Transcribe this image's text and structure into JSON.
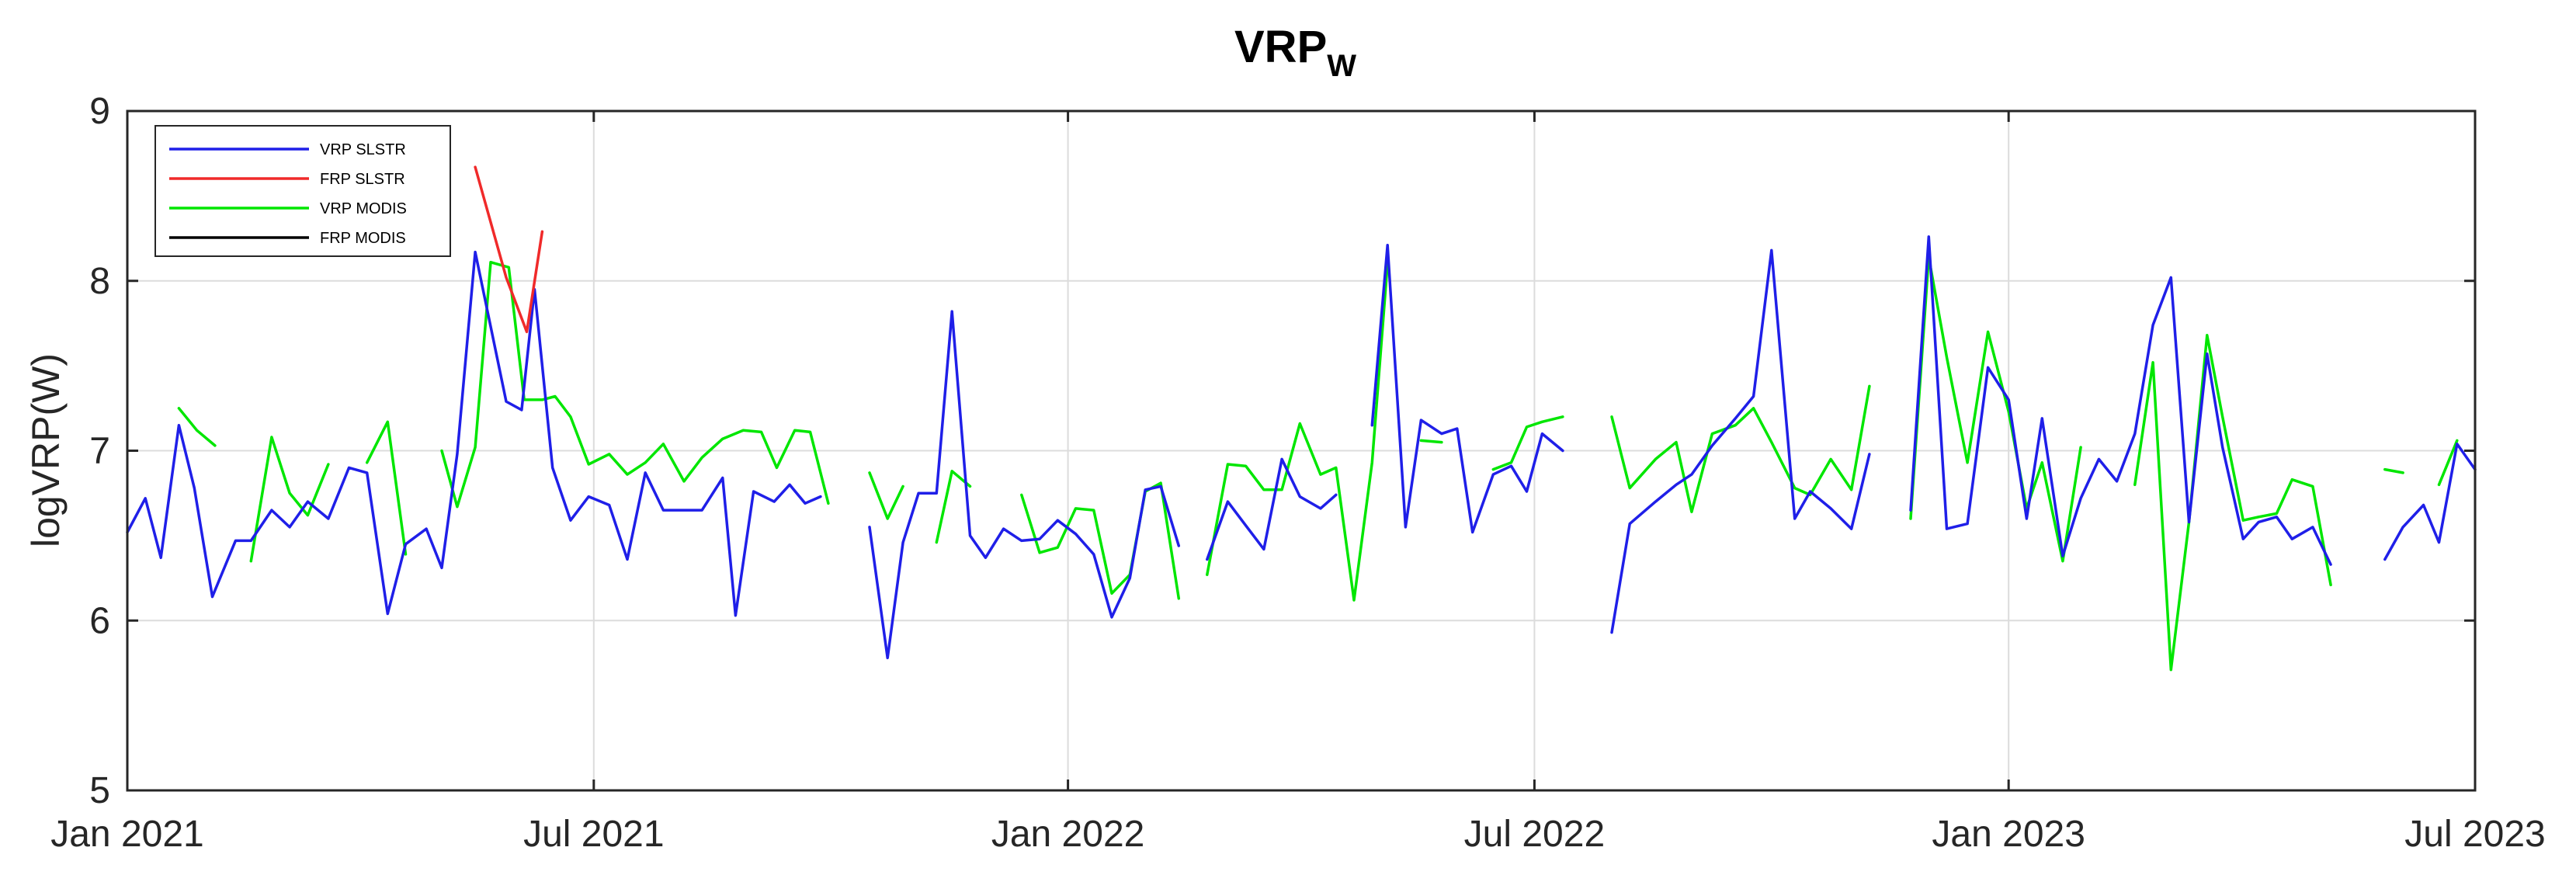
{
  "chart_data": {
    "type": "line",
    "title": "VRP",
    "title_subscript": "W",
    "xlabel": "",
    "ylabel": "logVRP(W)",
    "x_ticks": [
      "Jan 2021",
      "Jul 2021",
      "Jan 2022",
      "Jul 2022",
      "Jan 2023",
      "Jul 2023"
    ],
    "x_range": [
      "2021-01-01",
      "2023-07-01"
    ],
    "ylim": [
      5,
      9
    ],
    "y_ticks": [
      "5",
      "6",
      "7",
      "8",
      "9"
    ],
    "grid": true,
    "legend_position": "top-left",
    "series": [
      {
        "name": "VRP SLSTR",
        "color": "#1f1fe8",
        "points": [
          [
            "2021-01-01",
            6.52
          ],
          [
            "2021-01-09",
            6.72
          ],
          [
            "2021-01-16",
            6.37
          ],
          [
            "2021-01-24",
            7.15
          ],
          [
            "2021-01-31",
            6.78
          ],
          [
            "2021-02-08",
            6.14
          ],
          [
            "2021-02-18",
            6.47
          ],
          [
            "2021-02-25",
            6.47
          ],
          [
            "2021-03-06",
            6.65
          ],
          [
            "2021-03-14",
            6.55
          ],
          [
            "2021-03-22",
            6.7
          ],
          [
            "2021-03-31",
            6.6
          ],
          [
            "2021-04-08",
            6.9
          ],
          [
            "2021-04-16",
            6.87
          ],
          [
            "2021-04-25",
            6.04
          ],
          [
            "2021-05-03",
            6.45
          ],
          [
            "2021-05-12",
            6.54
          ],
          [
            "2021-05-19",
            6.31
          ],
          [
            "2021-05-26",
            6.98
          ],
          [
            "2021-06-03",
            8.17
          ],
          [
            "2021-06-16",
            7.29
          ],
          [
            "2021-06-23",
            7.24
          ],
          [
            "2021-06-29",
            7.95
          ],
          [
            "2021-07-07",
            6.9
          ],
          [
            "2021-07-14",
            6.59
          ],
          [
            "2021-07-22",
            6.73
          ],
          [
            "2021-07-31",
            6.68
          ],
          [
            "2021-08-08",
            6.36
          ],
          [
            "2021-08-16",
            6.87
          ],
          [
            "2021-08-24",
            6.65
          ],
          [
            "2021-09-02",
            6.65
          ],
          [
            "2021-09-10",
            6.65
          ],
          [
            "2021-09-19",
            6.84
          ],
          [
            "2021-09-25",
            6.03
          ],
          [
            "2021-10-03",
            6.76
          ],
          [
            "2021-10-11",
            6.7
          ],
          [
            "2021-10-18",
            6.8
          ],
          [
            "2021-10-25",
            6.69
          ],
          [
            "2021-11-01",
            6.73
          ],
          null,
          [
            "2021-11-22",
            6.55
          ],
          [
            "2021-11-30",
            5.78
          ],
          [
            "2021-12-07",
            6.46
          ],
          [
            "2021-12-14",
            6.75
          ],
          [
            "2021-12-21",
            6.75
          ],
          [
            "2021-12-28",
            7.82
          ],
          [
            "2022-01-05",
            6.5
          ],
          [
            "2022-01-12",
            6.37
          ],
          [
            "2022-01-20",
            6.54
          ],
          [
            "2022-01-28",
            6.47
          ],
          [
            "2022-02-05",
            6.48
          ],
          [
            "2022-02-12",
            6.59
          ],
          [
            "2022-02-20",
            6.51
          ],
          [
            "2022-02-28",
            6.39
          ],
          [
            "2022-03-08",
            6.02
          ],
          [
            "2022-03-16",
            6.25
          ],
          [
            "2022-03-23",
            6.77
          ],
          [
            "2022-03-30",
            6.79
          ],
          [
            "2022-04-06",
            6.44
          ],
          null,
          [
            "2022-04-19",
            6.36
          ],
          [
            "2022-04-28",
            6.7
          ],
          [
            "2022-05-06",
            6.56
          ],
          [
            "2022-05-14",
            6.42
          ],
          [
            "2022-05-22",
            6.95
          ],
          [
            "2022-05-30",
            6.73
          ],
          [
            "2022-06-07",
            6.66
          ],
          [
            "2022-06-14",
            6.74
          ],
          null,
          [
            "2022-06-30",
            7.15
          ],
          [
            "2022-07-07",
            8.21
          ],
          [
            "2022-07-15",
            6.55
          ],
          [
            "2022-07-22",
            7.18
          ],
          [
            "2022-07-30",
            7.1
          ],
          [
            "2022-08-06",
            7.13
          ],
          [
            "2022-08-13",
            6.52
          ],
          [
            "2022-08-22",
            6.86
          ],
          [
            "2022-08-30",
            6.91
          ],
          [
            "2022-09-06",
            6.76
          ],
          [
            "2022-09-13",
            7.1
          ],
          [
            "2022-09-21",
            7.0
          ],
          null,
          [
            "2022-10-13",
            5.93
          ],
          [
            "2022-10-21",
            6.57
          ],
          [
            "2022-11-01",
            6.7
          ],
          [
            "2022-11-10",
            6.8
          ],
          [
            "2022-11-17",
            6.86
          ],
          [
            "2022-11-26",
            7.03
          ],
          [
            "2022-12-06",
            7.19
          ],
          [
            "2022-12-14",
            7.32
          ],
          [
            "2022-12-22",
            8.18
          ],
          [
            "2023-01-01",
            6.6
          ],
          [
            "2023-01-08",
            6.76
          ],
          [
            "2023-01-17",
            6.66
          ],
          [
            "2023-01-26",
            6.54
          ],
          [
            "2023-02-03",
            6.98
          ],
          null,
          [
            "2023-02-21",
            6.65
          ],
          [
            "2023-03-01",
            8.26
          ],
          [
            "2023-03-09",
            6.54
          ],
          [
            "2023-03-18",
            6.57
          ],
          [
            "2023-03-27",
            7.49
          ],
          [
            "2023-04-04",
            7.3
          ],
          [
            "2023-04-12",
            6.6
          ],
          [
            "2023-04-19",
            7.19
          ],
          [
            "2023-04-28",
            6.38
          ],
          [
            "2023-05-06",
            6.72
          ],
          [
            "2023-05-14",
            6.95
          ],
          [
            "2023-05-22",
            6.82
          ],
          [
            "2023-05-30",
            7.1
          ],
          [
            "2023-06-07",
            7.74
          ],
          [
            "2023-06-14",
            8.02
          ],
          [
            "2023-06-22",
            6.58
          ],
          [
            "2023-06-30",
            7.57
          ],
          [
            "2023-07-07",
            7.02
          ],
          [
            "2023-07-16",
            6.48
          ],
          [
            "2023-07-23",
            6.58
          ],
          [
            "2023-07-31",
            6.61
          ],
          [
            "2023-08-07",
            6.48
          ],
          [
            "2023-08-15",
            6.55
          ],
          [
            "2023-08-23",
            6.33
          ]
        ]
      },
      {
        "name": "FRP SLSTR",
        "color": "#f02a2a",
        "points": [
          [
            "2021-06-03",
            8.67
          ],
          [
            "2021-06-16",
            8.02
          ],
          [
            "2021-06-25",
            7.7
          ],
          [
            "2021-07-02",
            8.29
          ]
        ]
      },
      {
        "name": "VRP MODIS",
        "color": "#00e600",
        "points": [
          [
            "2021-01-24",
            7.25
          ],
          [
            "2021-02-01",
            7.12
          ],
          [
            "2021-02-09",
            7.03
          ],
          null,
          [
            "2021-02-25",
            6.35
          ],
          [
            "2021-03-06",
            7.08
          ],
          [
            "2021-03-14",
            6.75
          ],
          [
            "2021-03-22",
            6.62
          ],
          [
            "2021-03-31",
            6.92
          ],
          null,
          [
            "2021-04-16",
            6.93
          ],
          [
            "2021-04-25",
            7.17
          ],
          [
            "2021-05-03",
            6.39
          ],
          null,
          [
            "2021-05-19",
            7.0
          ],
          [
            "2021-05-26",
            6.67
          ],
          [
            "2021-06-03",
            7.02
          ],
          [
            "2021-06-10",
            8.11
          ],
          [
            "2021-06-17",
            8.08
          ],
          [
            "2021-06-24",
            7.3
          ],
          [
            "2021-07-02",
            7.3
          ],
          [
            "2021-07-08",
            7.32
          ],
          [
            "2021-07-15",
            7.2
          ],
          [
            "2021-07-22",
            6.92
          ],
          [
            "2021-07-31",
            6.98
          ],
          [
            "2021-08-08",
            6.86
          ],
          [
            "2021-08-16",
            6.93
          ],
          [
            "2021-08-24",
            7.04
          ],
          [
            "2021-09-02",
            6.82
          ],
          [
            "2021-09-10",
            6.96
          ],
          [
            "2021-09-19",
            7.07
          ],
          [
            "2021-09-28",
            7.12
          ],
          [
            "2021-10-06",
            7.11
          ],
          [
            "2021-10-13",
            6.9
          ],
          [
            "2021-10-20",
            7.12
          ],
          [
            "2021-10-27",
            7.11
          ],
          [
            "2021-11-04",
            6.69
          ],
          null,
          [
            "2021-11-22",
            6.87
          ],
          [
            "2021-11-30",
            6.6
          ],
          [
            "2021-12-07",
            6.79
          ],
          null,
          [
            "2021-12-21",
            6.46
          ],
          [
            "2021-12-28",
            6.88
          ],
          [
            "2022-01-05",
            6.79
          ],
          null,
          [
            "2022-01-28",
            6.74
          ],
          [
            "2022-02-05",
            6.4
          ],
          [
            "2022-02-12",
            6.43
          ],
          [
            "2022-02-20",
            6.66
          ],
          [
            "2022-02-28",
            6.65
          ],
          [
            "2022-03-08",
            6.16
          ],
          [
            "2022-03-16",
            6.27
          ],
          [
            "2022-03-23",
            6.76
          ],
          [
            "2022-03-30",
            6.81
          ],
          [
            "2022-04-06",
            6.13
          ],
          null,
          [
            "2022-04-19",
            6.27
          ],
          [
            "2022-04-28",
            6.92
          ],
          [
            "2022-05-06",
            6.91
          ],
          [
            "2022-05-14",
            6.77
          ],
          [
            "2022-05-22",
            6.77
          ],
          [
            "2022-05-30",
            7.16
          ],
          [
            "2022-06-07",
            6.86
          ],
          [
            "2022-06-14",
            6.9
          ],
          [
            "2022-06-22",
            6.12
          ],
          [
            "2022-06-30",
            6.93
          ],
          [
            "2022-07-07",
            8.1
          ],
          null,
          [
            "2022-07-22",
            7.06
          ],
          [
            "2022-07-30",
            7.05
          ],
          null,
          [
            "2022-08-22",
            6.89
          ],
          [
            "2022-08-30",
            6.93
          ],
          [
            "2022-09-06",
            7.14
          ],
          [
            "2022-09-13",
            7.17
          ],
          [
            "2022-09-21",
            7.2
          ],
          null,
          [
            "2022-10-13",
            7.2
          ],
          [
            "2022-10-21",
            6.78
          ],
          [
            "2022-11-01",
            6.95
          ],
          [
            "2022-11-10",
            7.05
          ],
          [
            "2022-11-17",
            6.64
          ],
          [
            "2022-11-26",
            7.1
          ],
          [
            "2022-12-06",
            7.15
          ],
          [
            "2022-12-14",
            7.25
          ],
          [
            "2022-12-22",
            7.05
          ],
          [
            "2023-01-01",
            6.78
          ],
          [
            "2023-01-08",
            6.74
          ],
          [
            "2023-01-17",
            6.95
          ],
          [
            "2023-01-26",
            6.77
          ],
          [
            "2023-02-03",
            7.38
          ],
          null,
          [
            "2023-02-21",
            6.6
          ],
          [
            "2023-03-01",
            8.14
          ],
          [
            "2023-03-09",
            7.55
          ],
          [
            "2023-03-18",
            6.93
          ],
          [
            "2023-03-27",
            7.7
          ],
          [
            "2023-04-04",
            7.23
          ],
          [
            "2023-04-12",
            6.66
          ],
          [
            "2023-04-19",
            6.93
          ],
          [
            "2023-04-28",
            6.35
          ],
          [
            "2023-05-06",
            7.02
          ],
          null,
          [
            "2023-05-30",
            6.8
          ],
          [
            "2023-06-07",
            7.52
          ],
          [
            "2023-06-14",
            5.71
          ],
          [
            "2023-06-22",
            6.58
          ],
          [
            "2023-06-30",
            7.68
          ],
          [
            "2023-07-07",
            7.2
          ],
          [
            "2023-07-16",
            6.59
          ],
          [
            "2023-07-23",
            6.61
          ],
          [
            "2023-07-31",
            6.63
          ],
          [
            "2023-08-07",
            6.83
          ],
          [
            "2023-08-15",
            6.79
          ],
          [
            "2023-08-23",
            6.21
          ]
        ]
      },
      {
        "name": "FRP MODIS",
        "color": "#000000",
        "points": []
      }
    ],
    "tail_segments": {
      "VRP SLSTR": [
        [
          "2023-09-16",
          6.36
        ],
        [
          "2023-09-24",
          6.55
        ],
        [
          "2023-10-03",
          6.68
        ],
        [
          "2023-10-10",
          6.46
        ],
        [
          "2023-10-18",
          7.04
        ],
        [
          "2023-10-25",
          6.89
        ]
      ],
      "VRP MODIS": [
        [
          "2023-09-16",
          6.89
        ],
        [
          "2023-09-24",
          6.87
        ],
        null,
        [
          "2023-10-10",
          6.8
        ],
        [
          "2023-10-18",
          7.06
        ]
      ]
    }
  }
}
